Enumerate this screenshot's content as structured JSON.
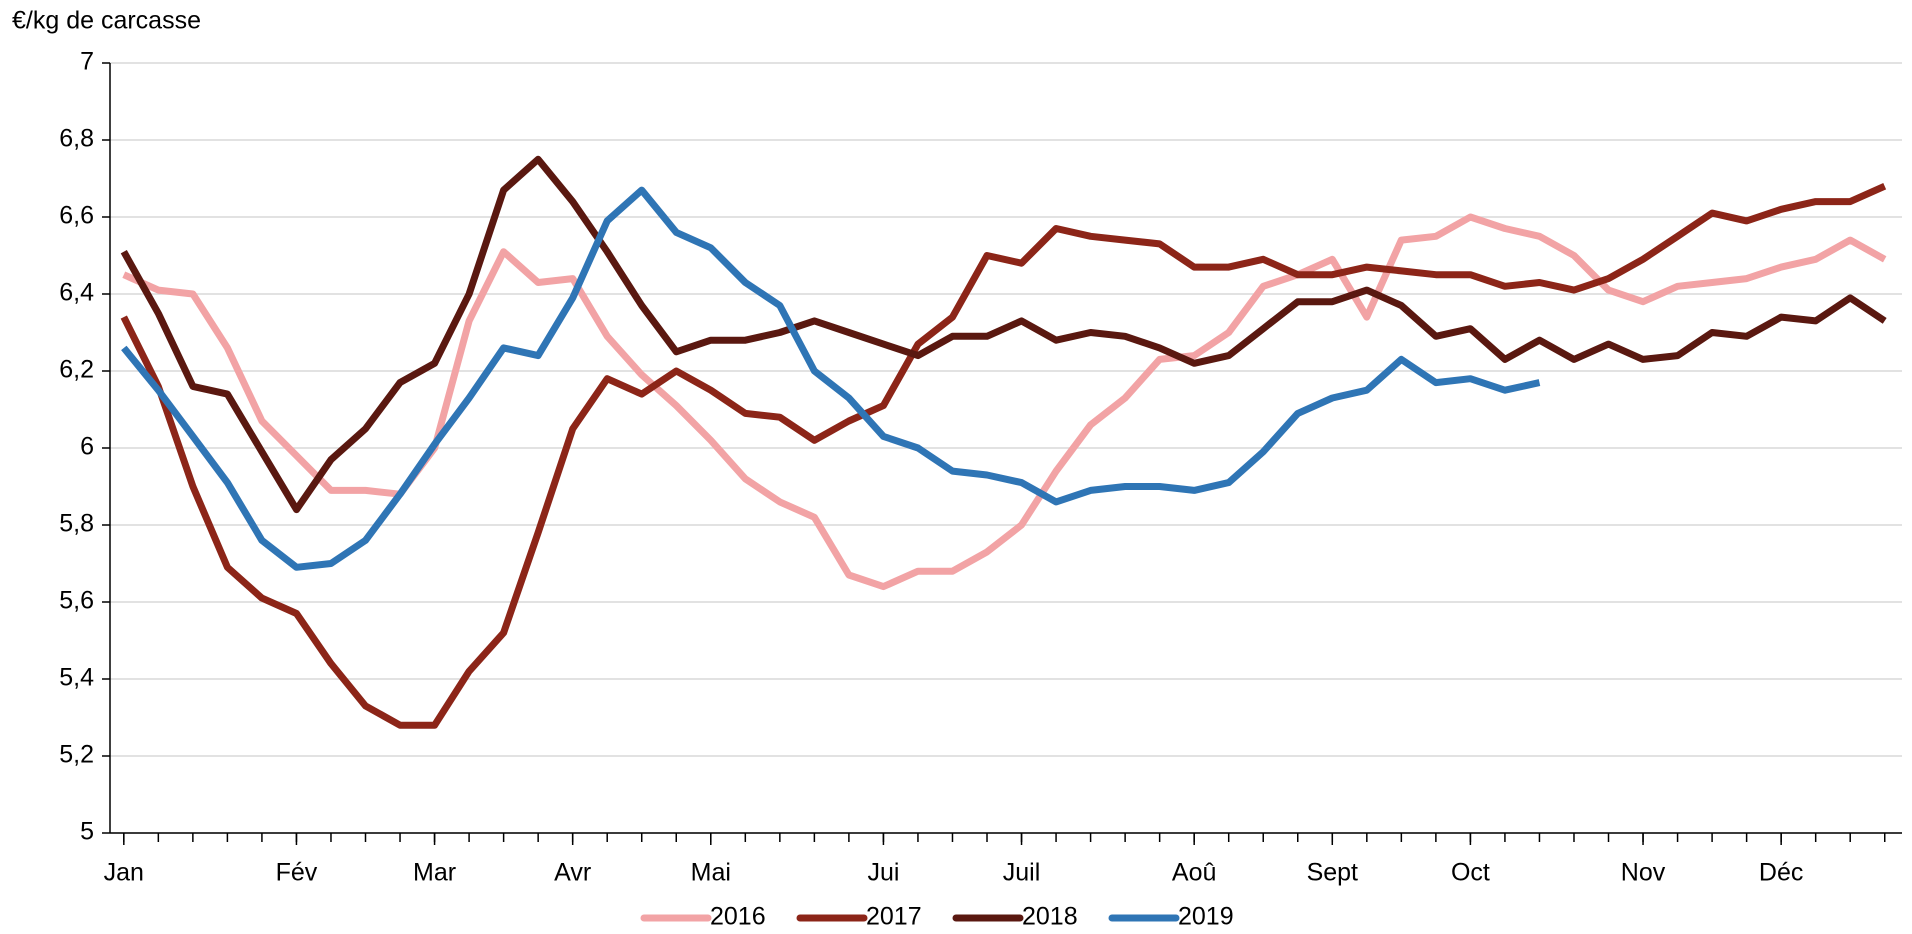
{
  "chart_data": {
    "type": "line",
    "y_axis_label": "€/kg de carcasse",
    "x": [
      1,
      2,
      3,
      4,
      5,
      6,
      7,
      8,
      9,
      10,
      11,
      12,
      13,
      14,
      15,
      16,
      17,
      18,
      19,
      20,
      21,
      22,
      23,
      24,
      25,
      26,
      27,
      28,
      29,
      30,
      31,
      32,
      33,
      34,
      35,
      36,
      37,
      38,
      39,
      40,
      41,
      42,
      43,
      44,
      45,
      46,
      47,
      48,
      49,
      50,
      51,
      52
    ],
    "xlim": [
      0.6,
      52.5
    ],
    "xticks": [
      {
        "value": 1,
        "label": "Jan"
      },
      {
        "value": 6,
        "label": "Fév"
      },
      {
        "value": 10,
        "label": "Mar"
      },
      {
        "value": 14,
        "label": "Avr"
      },
      {
        "value": 18,
        "label": "Mai"
      },
      {
        "value": 23,
        "label": "Jui"
      },
      {
        "value": 27,
        "label": "Juil"
      },
      {
        "value": 32,
        "label": "Aoû"
      },
      {
        "value": 36,
        "label": "Sept"
      },
      {
        "value": 40,
        "label": "Oct"
      },
      {
        "value": 45,
        "label": "Nov"
      },
      {
        "value": 49,
        "label": "Déc"
      }
    ],
    "ylim": [
      5,
      7
    ],
    "yticks": [
      5,
      {
        "value": 5.2,
        "label": "5,2"
      },
      {
        "value": 5.4,
        "label": "5,4"
      },
      {
        "value": 5.6,
        "label": "5,6"
      },
      {
        "value": 5.8,
        "label": "5,8"
      },
      6,
      {
        "value": 6.2,
        "label": "6,2"
      },
      {
        "value": 6.4,
        "label": "6,4"
      },
      {
        "value": 6.6,
        "label": "6,6"
      },
      {
        "value": 6.8,
        "label": "6,8"
      },
      7
    ],
    "grid": true,
    "legend": "bottom",
    "series": [
      {
        "name": "2016",
        "color": "#f2a3a5",
        "values": [
          6.45,
          6.41,
          6.4,
          6.26,
          6.07,
          5.98,
          5.89,
          5.89,
          5.88,
          6.0,
          6.33,
          6.51,
          6.43,
          6.44,
          6.29,
          6.19,
          6.11,
          6.02,
          5.92,
          5.86,
          5.82,
          5.67,
          5.64,
          5.68,
          5.68,
          5.73,
          5.8,
          5.94,
          6.06,
          6.13,
          6.23,
          6.24,
          6.3,
          6.42,
          6.45,
          6.49,
          6.34,
          6.54,
          6.55,
          6.6,
          6.57,
          6.55,
          6.5,
          6.41,
          6.38,
          6.42,
          6.43,
          6.44,
          6.47,
          6.49,
          6.54,
          6.49
        ]
      },
      {
        "name": "2017",
        "color": "#8c2518",
        "values": [
          6.34,
          6.16,
          5.9,
          5.69,
          5.61,
          5.57,
          5.44,
          5.33,
          5.28,
          5.28,
          5.42,
          5.52,
          5.78,
          6.05,
          6.18,
          6.14,
          6.2,
          6.15,
          6.09,
          6.08,
          6.02,
          6.07,
          6.11,
          6.27,
          6.34,
          6.5,
          6.48,
          6.57,
          6.55,
          6.54,
          6.53,
          6.47,
          6.47,
          6.49,
          6.45,
          6.45,
          6.47,
          6.46,
          6.45,
          6.45,
          6.42,
          6.43,
          6.41,
          6.44,
          6.49,
          6.55,
          6.61,
          6.59,
          6.62,
          6.64,
          6.64,
          6.68
        ]
      },
      {
        "name": "2018",
        "color": "#5a1810",
        "values": [
          6.51,
          6.35,
          6.16,
          6.14,
          5.99,
          5.84,
          5.97,
          6.05,
          6.17,
          6.22,
          6.4,
          6.67,
          6.75,
          6.64,
          6.51,
          6.37,
          6.25,
          6.28,
          6.28,
          6.3,
          6.33,
          6.3,
          6.27,
          6.24,
          6.29,
          6.29,
          6.33,
          6.28,
          6.3,
          6.29,
          6.26,
          6.22,
          6.24,
          6.31,
          6.38,
          6.38,
          6.41,
          6.37,
          6.29,
          6.31,
          6.23,
          6.28,
          6.23,
          6.27,
          6.23,
          6.24,
          6.3,
          6.29,
          6.34,
          6.33,
          6.39,
          6.33
        ]
      },
      {
        "name": "2019",
        "color": "#2f75b5",
        "values": [
          6.26,
          6.15,
          6.03,
          5.91,
          5.76,
          5.69,
          5.7,
          5.76,
          5.88,
          6.01,
          6.13,
          6.26,
          6.24,
          6.39,
          6.59,
          6.67,
          6.56,
          6.52,
          6.43,
          6.37,
          6.2,
          6.13,
          6.03,
          6.0,
          5.94,
          5.93,
          5.91,
          5.86,
          5.89,
          5.9,
          5.9,
          5.89,
          5.91,
          5.99,
          6.09,
          6.13,
          6.15,
          6.23,
          6.17,
          6.18,
          6.15,
          6.17,
          null,
          null,
          null,
          null,
          null,
          null,
          null,
          null,
          null,
          null
        ]
      }
    ]
  }
}
